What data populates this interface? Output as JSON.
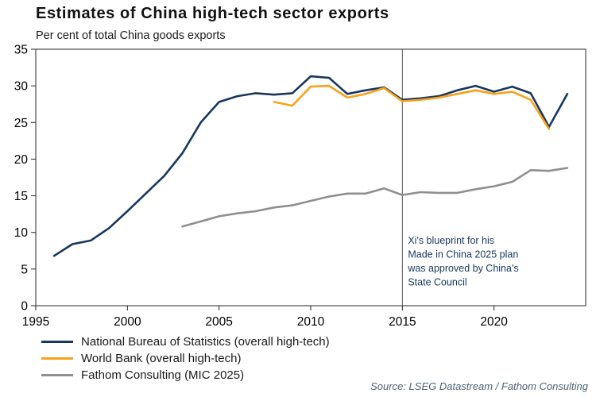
{
  "header": {
    "title": "Estimates of China high-tech sector exports",
    "subtitle": "Per cent of total China goods exports"
  },
  "source": "Source: LSEG Datastream / Fathom Consulting",
  "chart_data": {
    "type": "line",
    "title": "Estimates of China high-tech sector exports",
    "subtitle": "Per cent of total China goods exports",
    "xlabel": "",
    "ylabel": "Per cent of total China goods exports",
    "x_range": [
      1995,
      2025
    ],
    "y_range": [
      0,
      35
    ],
    "x_ticks": [
      1995,
      2000,
      2005,
      2010,
      2015,
      2020
    ],
    "y_ticks": [
      0,
      5,
      10,
      15,
      20,
      25,
      30,
      35
    ],
    "grid": false,
    "legend_position": "bottom-left",
    "frame_color": "#262626",
    "series": [
      {
        "id": "nbs",
        "name": "National Bureau of Statistics (overall high-tech)",
        "color": "#17375e",
        "points": [
          [
            1996,
            6.8
          ],
          [
            1997,
            8.4
          ],
          [
            1998,
            8.9
          ],
          [
            1999,
            10.6
          ],
          [
            2000,
            12.9
          ],
          [
            2001,
            15.3
          ],
          [
            2002,
            17.7
          ],
          [
            2003,
            20.8
          ],
          [
            2004,
            25.0
          ],
          [
            2005,
            27.8
          ],
          [
            2006,
            28.6
          ],
          [
            2007,
            29.0
          ],
          [
            2008,
            28.8
          ],
          [
            2009,
            29.0
          ],
          [
            2010,
            31.3
          ],
          [
            2011,
            31.1
          ],
          [
            2012,
            28.9
          ],
          [
            2013,
            29.4
          ],
          [
            2014,
            29.8
          ],
          [
            2015,
            28.1
          ],
          [
            2016,
            28.3
          ],
          [
            2017,
            28.6
          ],
          [
            2018,
            29.4
          ],
          [
            2019,
            30.0
          ],
          [
            2020,
            29.2
          ],
          [
            2021,
            29.9
          ],
          [
            2022,
            29.0
          ],
          [
            2023,
            24.4
          ],
          [
            2024,
            28.9
          ]
        ]
      },
      {
        "id": "world-bank",
        "name": "World Bank (overall high-tech)",
        "color": "#f7a21b",
        "points": [
          [
            2008,
            27.8
          ],
          [
            2009,
            27.3
          ],
          [
            2010,
            29.9
          ],
          [
            2011,
            30.0
          ],
          [
            2012,
            28.4
          ],
          [
            2013,
            28.9
          ],
          [
            2014,
            29.7
          ],
          [
            2015,
            27.9
          ],
          [
            2016,
            28.1
          ],
          [
            2017,
            28.4
          ],
          [
            2018,
            28.9
          ],
          [
            2019,
            29.4
          ],
          [
            2020,
            28.9
          ],
          [
            2021,
            29.2
          ],
          [
            2022,
            28.1
          ],
          [
            2023,
            24.1
          ]
        ]
      },
      {
        "id": "fathom",
        "name": "Fathom Consulting (MIC 2025)",
        "color": "#8f8f8f",
        "points": [
          [
            2003,
            10.8
          ],
          [
            2004,
            11.5
          ],
          [
            2005,
            12.2
          ],
          [
            2006,
            12.6
          ],
          [
            2007,
            12.9
          ],
          [
            2008,
            13.4
          ],
          [
            2009,
            13.7
          ],
          [
            2010,
            14.3
          ],
          [
            2011,
            14.9
          ],
          [
            2012,
            15.3
          ],
          [
            2013,
            15.3
          ],
          [
            2014,
            16.0
          ],
          [
            2015,
            15.1
          ],
          [
            2016,
            15.5
          ],
          [
            2017,
            15.4
          ],
          [
            2018,
            15.4
          ],
          [
            2019,
            15.9
          ],
          [
            2020,
            16.3
          ],
          [
            2021,
            16.9
          ],
          [
            2022,
            18.5
          ],
          [
            2023,
            18.4
          ],
          [
            2024,
            18.8
          ]
        ]
      }
    ],
    "annotation": {
      "x": 2015,
      "line_color": "#555555",
      "text_color": "#17375e",
      "lines": [
        "Xi's blueprint for his",
        "Made in China 2025 plan",
        "was approved by China's",
        "State Council"
      ]
    }
  }
}
